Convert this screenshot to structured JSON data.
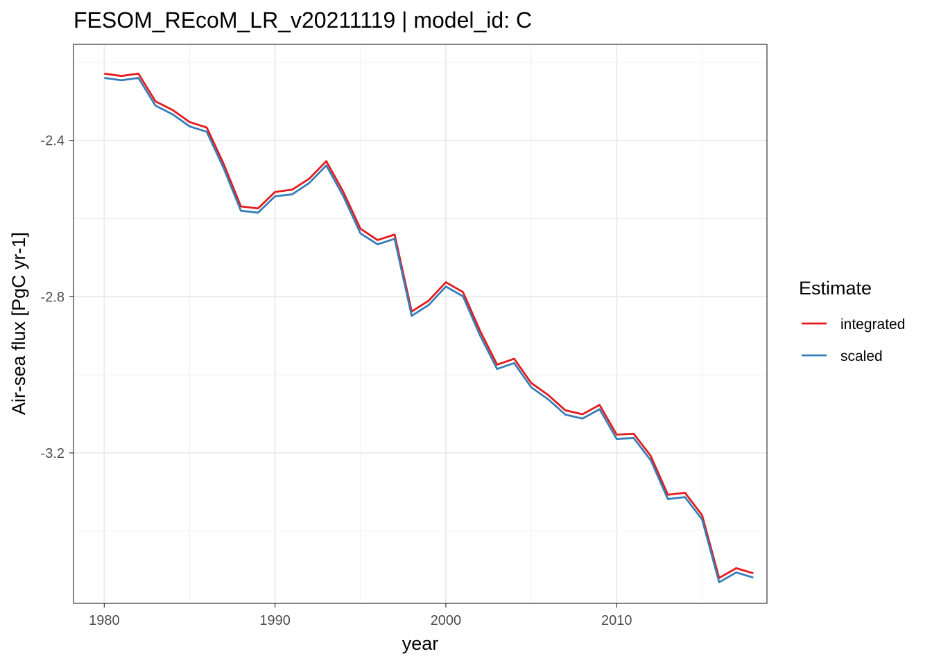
{
  "chart_data": {
    "type": "line",
    "title": "FESOM_REcoM_LR_v20211119 | model_id: C",
    "xlabel": "year",
    "ylabel": "Air-sea flux [PgC yr-1]",
    "xlim": [
      1978.2,
      2018.8
    ],
    "ylim": [
      -3.585,
      -2.154
    ],
    "x_ticks": [
      1980,
      1990,
      2000,
      2010
    ],
    "y_ticks": [
      -2.4,
      -2.8,
      -3.2
    ],
    "x_tick_labels": [
      "1980",
      "1990",
      "2000",
      "2010"
    ],
    "y_tick_labels": [
      "-2.4",
      "-2.8",
      "-3.2"
    ],
    "grid": true,
    "legend": {
      "title": "Estimate",
      "position": "right"
    },
    "x": [
      1980,
      1981,
      1982,
      1983,
      1984,
      1985,
      1986,
      1987,
      1988,
      1989,
      1990,
      1991,
      1992,
      1993,
      1994,
      1995,
      1996,
      1997,
      1998,
      1999,
      2000,
      2001,
      2002,
      2003,
      2004,
      2005,
      2006,
      2007,
      2008,
      2009,
      2010,
      2011,
      2012,
      2013,
      2014,
      2015,
      2016,
      2017,
      2018
    ],
    "series": [
      {
        "name": "integrated",
        "color": "#e41a1c",
        "values": [
          -2.229,
          -2.235,
          -2.229,
          -2.3,
          -2.322,
          -2.353,
          -2.367,
          -2.461,
          -2.569,
          -2.574,
          -2.532,
          -2.526,
          -2.498,
          -2.453,
          -2.532,
          -2.626,
          -2.655,
          -2.641,
          -2.838,
          -2.81,
          -2.763,
          -2.788,
          -2.887,
          -2.974,
          -2.959,
          -3.021,
          -3.052,
          -3.091,
          -3.101,
          -3.077,
          -3.153,
          -3.151,
          -3.208,
          -3.307,
          -3.302,
          -3.359,
          -3.52,
          -3.495,
          -3.508
        ]
      },
      {
        "name": "scaled",
        "color": "#377eb8",
        "values": [
          -2.24,
          -2.246,
          -2.24,
          -2.311,
          -2.333,
          -2.364,
          -2.378,
          -2.472,
          -2.58,
          -2.585,
          -2.543,
          -2.538,
          -2.509,
          -2.464,
          -2.543,
          -2.638,
          -2.666,
          -2.652,
          -2.849,
          -2.821,
          -2.774,
          -2.799,
          -2.899,
          -2.985,
          -2.97,
          -3.032,
          -3.063,
          -3.102,
          -3.112,
          -3.088,
          -3.164,
          -3.162,
          -3.219,
          -3.318,
          -3.313,
          -3.37,
          -3.531,
          -3.506,
          -3.519
        ]
      }
    ]
  }
}
